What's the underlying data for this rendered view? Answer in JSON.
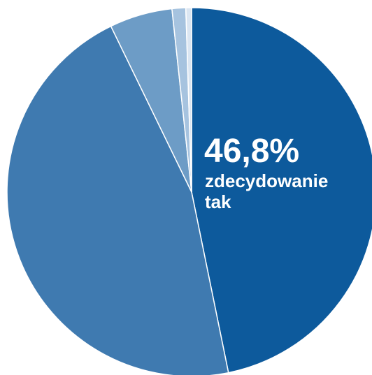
{
  "chart_data": {
    "type": "pie",
    "slices": [
      {
        "value": 46.8,
        "color": "#0d5a9c"
      },
      {
        "value": 46.0,
        "color": "#3f7ab0"
      },
      {
        "value": 5.5,
        "color": "#6d9cc6"
      },
      {
        "value": 1.2,
        "color": "#a6c3df"
      },
      {
        "value": 0.5,
        "color": "#dbe6f2"
      }
    ],
    "annotation": {
      "value_text": "46,8%",
      "label_line1": "zdecydowanie",
      "label_line2": "tak"
    }
  }
}
